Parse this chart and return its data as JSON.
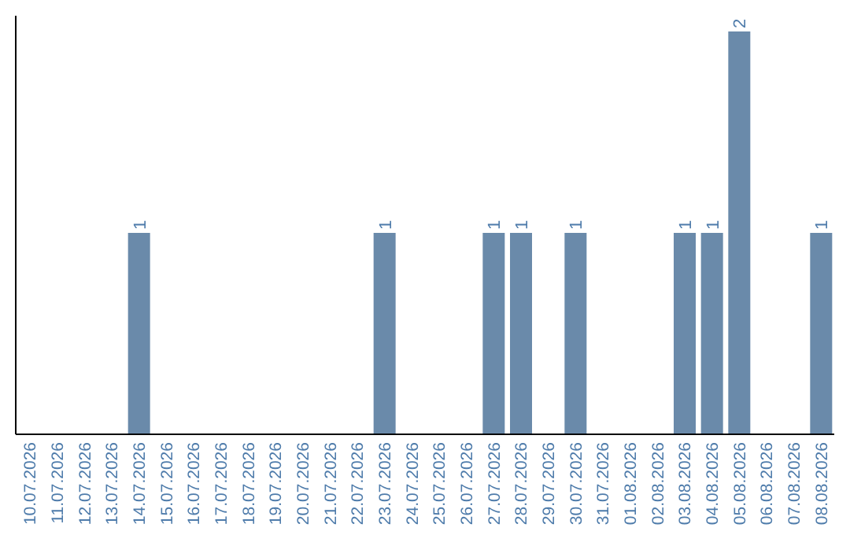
{
  "chart_data": {
    "type": "bar",
    "categories": [
      "10.07.2026",
      "11.07.2026",
      "12.07.2026",
      "13.07.2026",
      "14.07.2026",
      "15.07.2026",
      "16.07.2026",
      "17.07.2026",
      "18.07.2026",
      "19.07.2026",
      "20.07.2026",
      "21.07.2026",
      "22.07.2026",
      "23.07.2026",
      "24.07.2026",
      "25.07.2026",
      "26.07.2026",
      "27.07.2026",
      "28.07.2026",
      "29.07.2026",
      "30.07.2026",
      "31.07.2026",
      "01.08.2026",
      "02.08.2026",
      "03.08.2026",
      "04.08.2026",
      "05.08.2026",
      "06.08.2026",
      "07.08.2026",
      "08.08.2026"
    ],
    "values": [
      0,
      0,
      0,
      0,
      1,
      0,
      0,
      0,
      0,
      0,
      0,
      0,
      0,
      1,
      0,
      0,
      0,
      1,
      1,
      0,
      1,
      0,
      0,
      0,
      1,
      1,
      2,
      0,
      0,
      1
    ],
    "value_labels": [
      null,
      null,
      null,
      null,
      "1",
      null,
      null,
      null,
      null,
      null,
      null,
      null,
      null,
      "1",
      null,
      null,
      null,
      "1",
      "1",
      null,
      "1",
      null,
      null,
      null,
      "1",
      "1",
      "2",
      null,
      null,
      "1"
    ],
    "color": "#6a8aaa",
    "tick_labels": "x",
    "grid": false,
    "legend": false
  }
}
